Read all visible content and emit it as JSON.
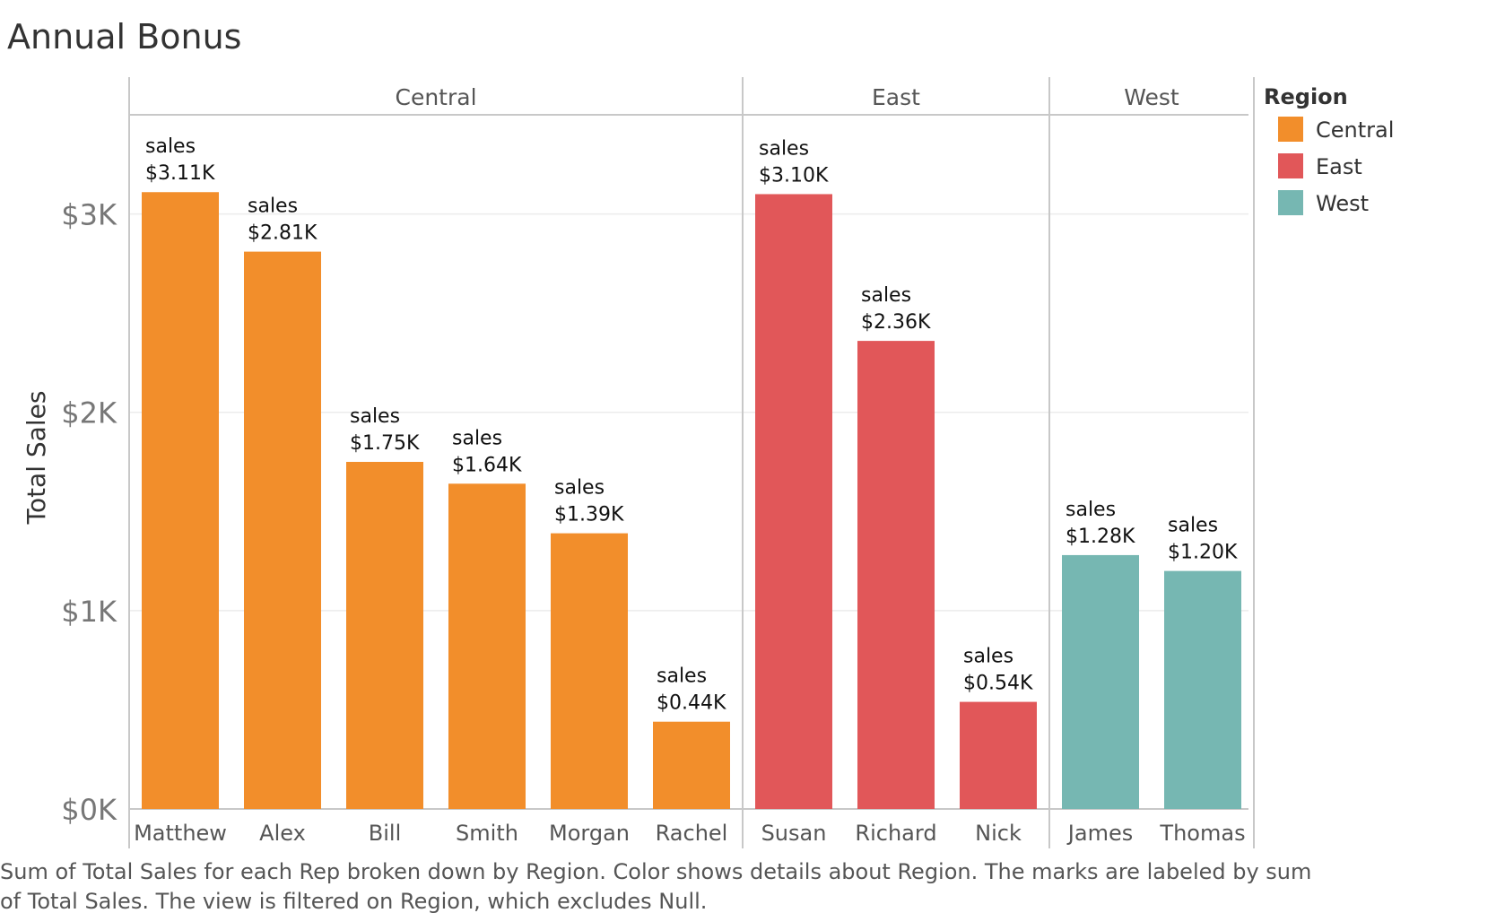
{
  "chart_data": {
    "type": "bar",
    "title": "Annual Bonus",
    "ylabel": "Total Sales",
    "xlabel": "",
    "ylim": [
      0,
      3500
    ],
    "y_ticks": [
      {
        "value": 0,
        "label": "$0K"
      },
      {
        "value": 1000,
        "label": "$1K"
      },
      {
        "value": 2000,
        "label": "$2K"
      },
      {
        "value": 3000,
        "label": "$3K"
      }
    ],
    "grid": true,
    "label_prefix": "sales",
    "panels": [
      {
        "region": "Central",
        "color": "#f28e2b",
        "categories": [
          "Matthew",
          "Alex",
          "Bill",
          "Smith",
          "Morgan",
          "Rachel"
        ],
        "values": [
          3110,
          2810,
          1750,
          1640,
          1390,
          440
        ],
        "value_labels": [
          "$3.11K",
          "$2.81K",
          "$1.75K",
          "$1.64K",
          "$1.39K",
          "$0.44K"
        ]
      },
      {
        "region": "East",
        "color": "#e15759",
        "categories": [
          "Susan",
          "Richard",
          "Nick"
        ],
        "values": [
          3100,
          2360,
          540
        ],
        "value_labels": [
          "$3.10K",
          "$2.36K",
          "$0.54K"
        ]
      },
      {
        "region": "West",
        "color": "#76b7b2",
        "categories": [
          "James",
          "Thomas"
        ],
        "values": [
          1280,
          1200
        ],
        "value_labels": [
          "$1.28K",
          "$1.20K"
        ]
      }
    ],
    "legend": {
      "title": "Region",
      "position": "right",
      "items": [
        {
          "label": "Central",
          "color": "#f28e2b"
        },
        {
          "label": "East",
          "color": "#e15759"
        },
        {
          "label": "West",
          "color": "#76b7b2"
        }
      ]
    },
    "caption": [
      "Sum of Total Sales for each Rep broken down by Region.  Color shows details about Region.  The marks are labeled by sum",
      "of Total Sales. The view is filtered on Region, which excludes Null."
    ]
  }
}
